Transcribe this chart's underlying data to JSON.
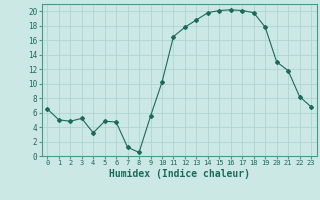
{
  "x_values": [
    0,
    1,
    2,
    3,
    4,
    5,
    6,
    7,
    8,
    9,
    10,
    11,
    12,
    13,
    14,
    15,
    16,
    17,
    18,
    19,
    20,
    21,
    22,
    23
  ],
  "y_values": [
    6.5,
    5.0,
    4.8,
    5.2,
    3.2,
    4.8,
    4.7,
    1.2,
    0.5,
    5.5,
    10.2,
    16.5,
    17.8,
    18.8,
    19.8,
    20.1,
    20.2,
    20.1,
    19.8,
    17.8,
    13.0,
    11.8,
    8.2,
    6.8
  ],
  "line_color": "#1a6b5a",
  "marker": "D",
  "marker_size": 2,
  "bg_color": "#cce8e4",
  "grid_color": "#afd4cf",
  "tick_color": "#1a6b5a",
  "axis_color": "#4a9a8a",
  "xlabel": "Humidex (Indice chaleur)",
  "xlabel_fontsize": 7,
  "xlim": [
    -0.5,
    23.5
  ],
  "ylim": [
    0,
    21
  ],
  "yticks": [
    0,
    2,
    4,
    6,
    8,
    10,
    12,
    14,
    16,
    18,
    20
  ],
  "xticks": [
    0,
    1,
    2,
    3,
    4,
    5,
    6,
    7,
    8,
    9,
    10,
    11,
    12,
    13,
    14,
    15,
    16,
    17,
    18,
    19,
    20,
    21,
    22,
    23
  ]
}
